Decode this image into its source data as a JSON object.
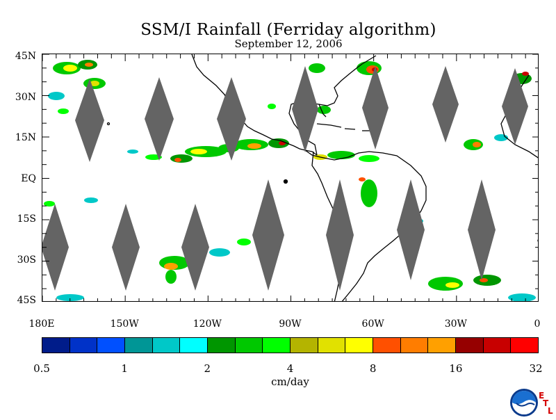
{
  "chart": {
    "title": "SSM/I Rainfall (Ferriday algorithm)",
    "subtitle": "September 12, 2006"
  },
  "latitude_labels": [
    "45N",
    "30N",
    "15N",
    "EQ",
    "15S",
    "30S",
    "45S"
  ],
  "longitude_labels": [
    "180E",
    "150W",
    "120W",
    "90W",
    "60W",
    "30W",
    "0"
  ],
  "colorbar": {
    "colors": [
      "#001c8a",
      "#0032c8",
      "#0050ff",
      "#009696",
      "#00c8c8",
      "#00ffff",
      "#009600",
      "#00c800",
      "#00ff00",
      "#b4b400",
      "#e1e100",
      "#ffff00",
      "#ff5000",
      "#ff7d00",
      "#ffa000",
      "#960000",
      "#c80000",
      "#ff0000"
    ],
    "tick_labels": [
      "0.5",
      "1",
      "2",
      "4",
      "8",
      "16",
      "32"
    ],
    "unit": "cm/day"
  },
  "chart_data": {
    "type": "heatmap",
    "title": "SSM/I Rainfall (Ferriday algorithm)",
    "subtitle": "September 12, 2006",
    "x_range": [
      -180,
      0
    ],
    "y_range": [
      -45,
      45
    ],
    "x_ticks": [
      "180E",
      "150W",
      "120W",
      "90W",
      "60W",
      "30W",
      "0"
    ],
    "y_ticks": [
      "45N",
      "30N",
      "15N",
      "EQ",
      "15S",
      "30S",
      "45S"
    ],
    "color_scale": {
      "unit": "cm/day",
      "boundaries": [
        0.5,
        1,
        2,
        4,
        8,
        16,
        32
      ],
      "scale": "log2"
    },
    "data_gaps": "diamond-shaped orbital swath gaps shown in gray",
    "gap_color": "#646464",
    "coastline_color": "#000000"
  },
  "logo": {
    "text": "NOAA",
    "letters": [
      "E",
      "T",
      "L"
    ]
  }
}
